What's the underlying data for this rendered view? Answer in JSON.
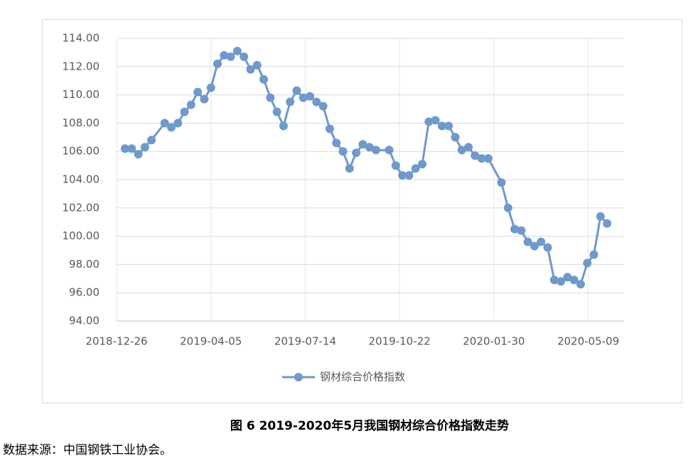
{
  "chart_data": {
    "type": "line",
    "x": [
      "2019-01-04",
      "2019-01-11",
      "2019-01-18",
      "2019-01-25",
      "2019-02-01",
      "2019-02-15",
      "2019-02-22",
      "2019-03-01",
      "2019-03-08",
      "2019-03-15",
      "2019-03-22",
      "2019-03-29",
      "2019-04-05",
      "2019-04-12",
      "2019-04-19",
      "2019-04-26",
      "2019-05-03",
      "2019-05-10",
      "2019-05-17",
      "2019-05-24",
      "2019-05-31",
      "2019-06-07",
      "2019-06-14",
      "2019-06-21",
      "2019-06-28",
      "2019-07-05",
      "2019-07-12",
      "2019-07-19",
      "2019-07-26",
      "2019-08-02",
      "2019-08-09",
      "2019-08-16",
      "2019-08-23",
      "2019-08-30",
      "2019-09-06",
      "2019-09-13",
      "2019-09-20",
      "2019-09-27",
      "2019-10-11",
      "2019-10-18",
      "2019-10-25",
      "2019-11-01",
      "2019-11-08",
      "2019-11-15",
      "2019-11-22",
      "2019-11-29",
      "2019-12-06",
      "2019-12-13",
      "2019-12-20",
      "2019-12-27",
      "2020-01-03",
      "2020-01-10",
      "2020-01-17",
      "2020-01-24",
      "2020-02-07",
      "2020-02-14",
      "2020-02-21",
      "2020-02-28",
      "2020-03-06",
      "2020-03-13",
      "2020-03-20",
      "2020-03-27",
      "2020-04-03",
      "2020-04-10",
      "2020-04-17",
      "2020-04-24",
      "2020-05-01",
      "2020-05-08",
      "2020-05-15",
      "2020-05-22",
      "2020-05-29"
    ],
    "series": [
      {
        "name": "钢材综合价格指数",
        "color": "#6f99cb",
        "values": [
          106.2,
          106.2,
          105.8,
          106.3,
          106.8,
          108.0,
          107.7,
          108.0,
          108.8,
          109.3,
          110.2,
          109.7,
          110.5,
          112.2,
          112.8,
          112.7,
          113.1,
          112.7,
          111.8,
          112.1,
          111.1,
          109.8,
          108.8,
          107.8,
          109.5,
          110.3,
          109.8,
          109.9,
          109.5,
          109.2,
          107.6,
          106.6,
          106.0,
          104.8,
          105.9,
          106.5,
          106.3,
          106.1,
          106.1,
          105.0,
          104.3,
          104.3,
          104.8,
          105.1,
          108.1,
          108.2,
          107.8,
          107.8,
          107.0,
          106.1,
          106.3,
          105.7,
          105.5,
          105.5,
          103.8,
          102.0,
          100.5,
          100.4,
          99.6,
          99.3,
          99.6,
          99.2,
          96.9,
          96.8,
          97.1,
          96.9,
          96.6,
          98.1,
          98.7,
          101.4,
          100.9
        ]
      }
    ],
    "xlim": [
      "2018-12-26",
      "2020-06-16"
    ],
    "xticks": [
      "2018-12-26",
      "2019-04-05",
      "2019-07-14",
      "2019-10-22",
      "2020-01-30",
      "2020-05-09"
    ],
    "ylim": [
      94,
      114
    ],
    "yticks": [
      {
        "value": 94,
        "label": "94.00"
      },
      {
        "value": 96,
        "label": "96.00"
      },
      {
        "value": 98,
        "label": "98.00"
      },
      {
        "value": 100,
        "label": "100.00"
      },
      {
        "value": 102,
        "label": "102.00"
      },
      {
        "value": 104,
        "label": "104.00"
      },
      {
        "value": 106,
        "label": "106.00"
      },
      {
        "value": 108,
        "label": "108.00"
      },
      {
        "value": 110,
        "label": "110.00"
      },
      {
        "value": 112,
        "label": "112.00"
      },
      {
        "value": 114,
        "label": "114.00"
      }
    ],
    "grid": true
  },
  "caption": "图 6 2019-2020年5月我国钢材综合价格指数走势",
  "source": "数据来源：中国钢铁工业协会。"
}
